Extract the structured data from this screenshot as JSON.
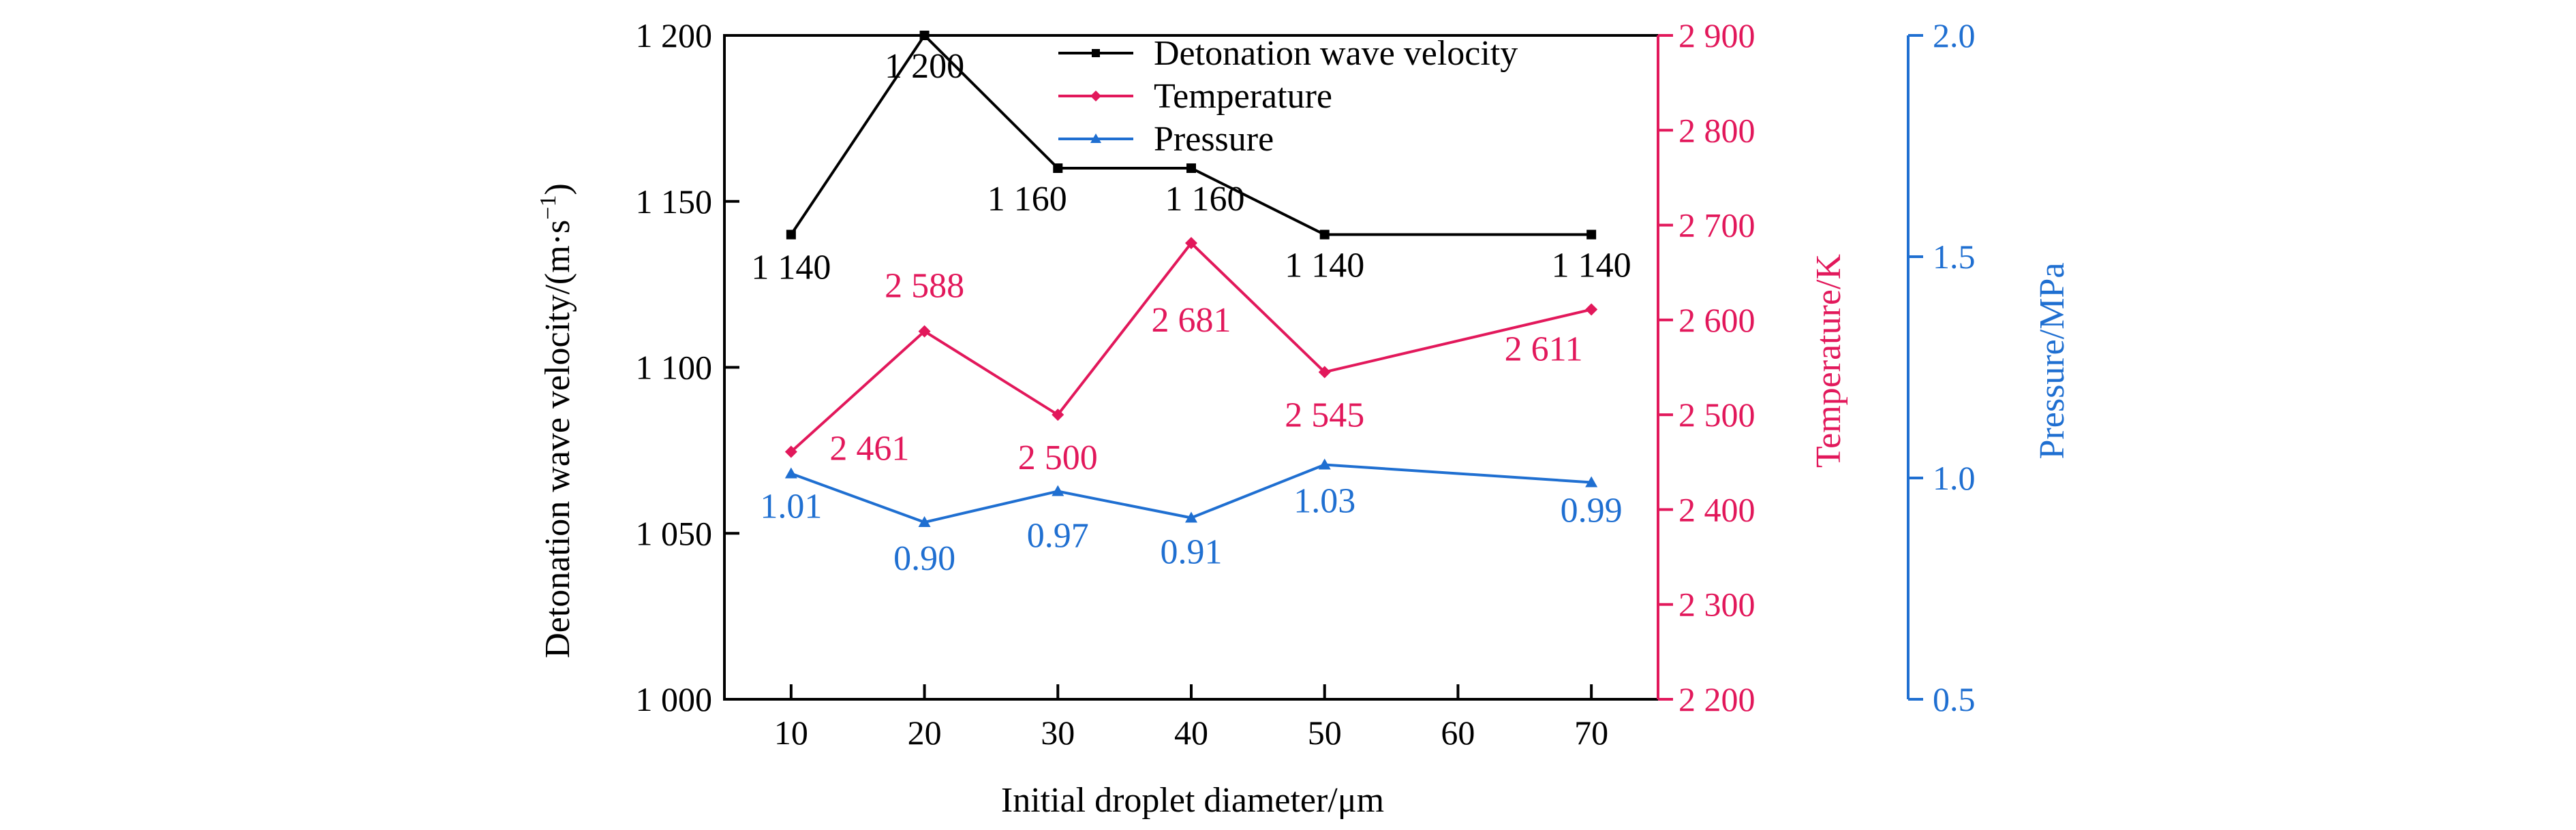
{
  "chart_data": {
    "type": "line",
    "x": [
      "10",
      "20",
      "30",
      "40",
      "50",
      "60",
      "70"
    ],
    "xlabel": "Initial droplet diameter/μm",
    "ylabel": "Detonation wave velocity/(m·s",
    "ylabel_unit_sup": "−1",
    "ylabel_close": ")",
    "ylabel_right1": "Temperature/K",
    "ylabel_right2": "Pressure/MPa",
    "ylim": [
      1000,
      1200
    ],
    "ylim_right1": [
      2200,
      2900
    ],
    "ylim_right2": [
      0.5,
      2.0
    ],
    "yticks": [
      "1 000",
      "1 050",
      "1 100",
      "1 150",
      "1 200"
    ],
    "yticks_right1": [
      "2 200",
      "2 300",
      "2 400",
      "2 500",
      "2 600",
      "2 700",
      "2 800",
      "2 900"
    ],
    "yticks_right2": [
      "0.5",
      "1.0",
      "1.5",
      "2.0"
    ],
    "legend_position": "top-right",
    "series": [
      {
        "name": "Detonation wave velocity",
        "axis": "left",
        "color": "#000000",
        "marker": "square",
        "x": [
          "10",
          "20",
          "30",
          "40",
          "50",
          "70"
        ],
        "values": [
          1140,
          1200,
          1160,
          1160,
          1140,
          1140
        ],
        "labels": [
          "1 140",
          "1 200",
          "1 160",
          "1 160",
          "1 140",
          "1 140"
        ]
      },
      {
        "name": "Temperature",
        "axis": "right1",
        "color": "#e2185b",
        "marker": "diamond",
        "x": [
          "10",
          "20",
          "30",
          "40",
          "50",
          "70"
        ],
        "values": [
          2461,
          2588,
          2500,
          2681,
          2545,
          2611
        ],
        "labels": [
          "2 461",
          "2 588",
          "2 500",
          "2 681",
          "2 545",
          "2 611"
        ]
      },
      {
        "name": "Pressure",
        "axis": "right2",
        "color": "#1f6fd1",
        "marker": "triangle",
        "x": [
          "10",
          "20",
          "30",
          "40",
          "50",
          "70"
        ],
        "values": [
          1.01,
          0.9,
          0.97,
          0.91,
          1.03,
          0.99
        ],
        "labels": [
          "1.01",
          "0.90",
          "0.97",
          "0.91",
          "1.03",
          "0.99"
        ]
      }
    ]
  }
}
